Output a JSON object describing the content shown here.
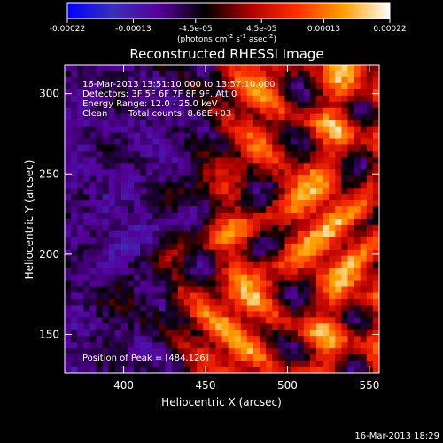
{
  "colorbar": {
    "tick_labels": [
      "-0.00022",
      "-0.00013",
      "-4.5e-05",
      "4.5e-05",
      "0.00013",
      "0.00022"
    ],
    "tick_values": [
      -0.00022,
      -0.00013,
      -4.5e-05,
      4.5e-05,
      0.00013,
      0.00022
    ],
    "range": [
      -0.00022,
      0.00022
    ],
    "units_main": "(photons cm",
    "units_sup1": "-2",
    "units_mid": " s",
    "units_sup2": "-1",
    "units_mid2": " asec",
    "units_sup3": "-2",
    "units_end": ")",
    "colors": [
      "#0000ff",
      "#3a2fb8",
      "#55009a",
      "#000000",
      "#b40000",
      "#ff3000",
      "#ffa000",
      "#ffffff"
    ]
  },
  "chart_data": {
    "type": "heatmap",
    "title": "Reconstructed RHESSI Image",
    "xlabel": "Heliocentric X (arcsec)",
    "ylabel": "Heliocentric Y (arcsec)",
    "xlim": [
      364,
      556
    ],
    "ylim": [
      126,
      318
    ],
    "x_ticks": [
      400,
      450,
      500,
      550
    ],
    "y_ticks": [
      150,
      200,
      250,
      300
    ],
    "annotations": {
      "time_range": "16-Mar-2013 13:51:10.000 to 13:57:10.000",
      "detectors": "Detectors: 3F 5F 6F 7F 8F 9F, Att 0",
      "energy": "Energy Range: 12.0 - 25.0 keV",
      "method": "Clean",
      "counts": "Total counts: 8.68E+03",
      "peak": "Position of Peak = [484,126]"
    }
  },
  "timestamp": "16-Mar-2013 18:29"
}
